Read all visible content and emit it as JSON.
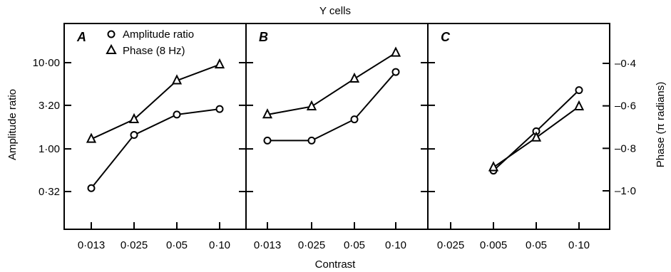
{
  "title": "Y cells",
  "xlabel": "Contrast",
  "ylabel_left": "Amplitude ratio",
  "ylabel_right": "Phase (π radians)",
  "legend": [
    {
      "marker": "circle",
      "label": "Amplitude ratio"
    },
    {
      "marker": "triangle",
      "label": "Phase (8 Hz)"
    }
  ],
  "left_axis": {
    "scale": "log",
    "ticks": [
      "0·32",
      "1·00",
      "3·20",
      "10·00"
    ],
    "tick_values": [
      0.32,
      1.0,
      3.2,
      10.0
    ]
  },
  "right_axis": {
    "scale": "linear",
    "ticks": [
      "–0·4",
      "–0·6",
      "–0·8",
      "–1·0"
    ],
    "tick_values": [
      -0.4,
      -0.6,
      -0.8,
      -1.0
    ]
  },
  "chart_data": [
    {
      "panel": "A",
      "type": "line",
      "x_ticks": [
        "0·013",
        "0·025",
        "0·05",
        "0·10"
      ],
      "series": [
        {
          "name": "Amplitude ratio",
          "marker": "circle",
          "x": [
            "0·013",
            "0·025",
            "0·05",
            "0·10"
          ],
          "values": [
            0.35,
            1.45,
            2.5,
            2.9
          ]
        },
        {
          "name": "Phase (8 Hz)",
          "marker": "triangle",
          "x": [
            "0·013",
            "0·025",
            "0·05",
            "0·10"
          ],
          "values": [
            1.3,
            2.2,
            6.2,
            9.5
          ]
        }
      ]
    },
    {
      "panel": "B",
      "type": "line",
      "x_ticks": [
        "0·013",
        "0·025",
        "0·05",
        "0·10"
      ],
      "series": [
        {
          "name": "Amplitude ratio",
          "marker": "circle",
          "x": [
            "0·013",
            "0·025",
            "0·05",
            "0·10"
          ],
          "values": [
            1.25,
            1.25,
            2.2,
            7.8
          ]
        },
        {
          "name": "Phase (8 Hz)",
          "marker": "triangle",
          "x": [
            "0·013",
            "0·025",
            "0·05",
            "0·10"
          ],
          "values": [
            2.5,
            3.1,
            6.5,
            13.0
          ]
        }
      ]
    },
    {
      "panel": "C",
      "type": "line",
      "x_ticks": [
        "0·025",
        "0·005",
        "0·05",
        "0·10"
      ],
      "series": [
        {
          "name": "Amplitude ratio",
          "marker": "circle",
          "x": [
            "0·005",
            "0·05",
            "0·10"
          ],
          "values": [
            0.56,
            1.6,
            4.8
          ]
        },
        {
          "name": "Phase (8 Hz)",
          "marker": "triangle",
          "x": [
            "0·005",
            "0·05",
            "0·10"
          ],
          "values": [
            0.61,
            1.35,
            3.1
          ]
        }
      ]
    }
  ]
}
